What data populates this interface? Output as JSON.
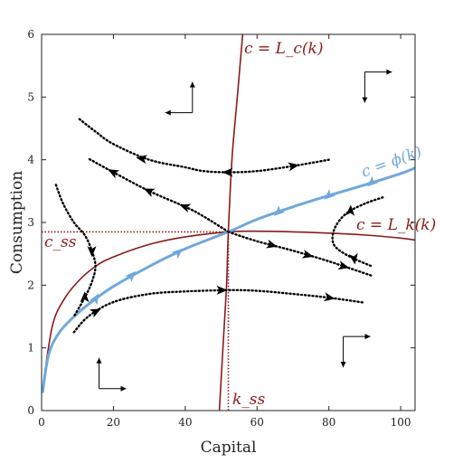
{
  "chart_data": {
    "type": "line",
    "xlabel": "Capital",
    "ylabel": "Consumption",
    "xlim": [
      0,
      104
    ],
    "ylim": [
      0,
      6
    ],
    "x_ticks": [
      "0",
      "20",
      "40",
      "60",
      "80",
      "100"
    ],
    "y_ticks": [
      "0",
      "1",
      "2",
      "3",
      "4",
      "5",
      "6"
    ],
    "grid": false,
    "steady_state": {
      "k": 52,
      "c": 2.85
    },
    "annotations": {
      "lc_label": "c = L_c(k)",
      "lk_label": "c = L_k(k)",
      "phi_label": "c = ϕ(k)",
      "css_label": "c_ss",
      "kss_label": "k_ss"
    },
    "colors": {
      "nullcline": "#8b1a1a",
      "saddle_path": "#6fa8dc",
      "trajectory": "#000000",
      "axes": "#222222"
    },
    "series": [
      {
        "id": "lc",
        "style": "nullcline",
        "x": [
          49.5,
          50.5,
          51.5,
          52.0,
          53.0,
          54.5,
          56.0
        ],
        "y": [
          0,
          1.0,
          2.0,
          2.85,
          4.0,
          5.0,
          6.0
        ]
      },
      {
        "id": "lk",
        "style": "nullcline",
        "x": [
          0.5,
          3,
          6,
          10,
          15,
          20,
          30,
          40,
          52,
          60,
          70,
          80,
          90,
          100,
          104
        ],
        "y": [
          0.45,
          1.35,
          1.75,
          2.05,
          2.3,
          2.45,
          2.65,
          2.77,
          2.85,
          2.86,
          2.85,
          2.83,
          2.8,
          2.75,
          2.72
        ]
      },
      {
        "id": "phi",
        "style": "saddle",
        "x": [
          0.3,
          2,
          5,
          10,
          15,
          20,
          30,
          40,
          52,
          60,
          70,
          80,
          90,
          100,
          104
        ],
        "y": [
          0.3,
          0.9,
          1.25,
          1.55,
          1.78,
          1.98,
          2.3,
          2.58,
          2.85,
          3.05,
          3.25,
          3.43,
          3.6,
          3.78,
          3.87
        ]
      },
      {
        "id": "t1",
        "style": "trajectory",
        "x": [
          80,
          70,
          60,
          52,
          45,
          40,
          30,
          20,
          15,
          10.5
        ],
        "y": [
          4.0,
          3.9,
          3.82,
          3.8,
          3.82,
          3.88,
          4.0,
          4.25,
          4.45,
          4.65
        ]
      },
      {
        "id": "t2",
        "style": "trajectory",
        "x": [
          52,
          45,
          40,
          30,
          20,
          13
        ],
        "y": [
          2.85,
          3.1,
          3.25,
          3.5,
          3.8,
          4.02
        ]
      },
      {
        "id": "t3",
        "style": "trajectory",
        "x": [
          9,
          13,
          20,
          30,
          40,
          52,
          60,
          70,
          80,
          90
        ],
        "y": [
          1.25,
          1.5,
          1.73,
          1.86,
          1.9,
          1.92,
          1.91,
          1.86,
          1.8,
          1.72
        ]
      },
      {
        "id": "t4",
        "style": "trajectory",
        "x": [
          52,
          60,
          70,
          80,
          92
        ],
        "y": [
          2.85,
          2.7,
          2.55,
          2.38,
          2.15
        ]
      },
      {
        "id": "t5",
        "style": "trajectory",
        "x": [
          4,
          6,
          9,
          12,
          14,
          15,
          14,
          12,
          9
        ],
        "y": [
          3.6,
          3.3,
          3.0,
          2.8,
          2.55,
          2.3,
          2.05,
          1.8,
          1.5
        ]
      },
      {
        "id": "t6",
        "style": "trajectory",
        "x": [
          95,
          90,
          85,
          82,
          81,
          82,
          86,
          92
        ],
        "y": [
          3.4,
          3.3,
          3.15,
          2.95,
          2.75,
          2.6,
          2.45,
          2.3
        ]
      }
    ],
    "arrows": [
      {
        "series": "phi",
        "x": 15,
        "y": 1.78,
        "dx": 1,
        "dy": 0.1
      },
      {
        "series": "phi",
        "x": 25,
        "y": 2.15,
        "dx": 1,
        "dy": 0.06
      },
      {
        "series": "phi",
        "x": 38,
        "y": 2.52,
        "dx": 1,
        "dy": 0.05
      },
      {
        "series": "phi",
        "x": 66,
        "y": 3.17,
        "dx": -1,
        "dy": -0.05
      },
      {
        "series": "phi",
        "x": 80,
        "y": 3.43,
        "dx": -1,
        "dy": -0.05
      },
      {
        "series": "phi",
        "x": 92,
        "y": 3.64,
        "dx": -1,
        "dy": -0.05
      },
      {
        "series": "t1",
        "x": 70,
        "y": 3.9,
        "dx": 1,
        "dy": 0.01
      },
      {
        "series": "t1",
        "x": 52,
        "y": 3.8,
        "dx": -1,
        "dy": 0
      },
      {
        "series": "t1",
        "x": 28,
        "y": 4.02,
        "dx": -1,
        "dy": 0.01
      },
      {
        "series": "t2",
        "x": 40,
        "y": 3.25,
        "dx": -1,
        "dy": 0.02
      },
      {
        "series": "t2",
        "x": 30,
        "y": 3.5,
        "dx": -1,
        "dy": 0.025
      },
      {
        "series": "t2",
        "x": 20,
        "y": 3.8,
        "dx": -1,
        "dy": 0.03
      },
      {
        "series": "t3",
        "x": 15,
        "y": 1.58,
        "dx": 1,
        "dy": 0.03
      },
      {
        "series": "t3",
        "x": 50,
        "y": 1.92,
        "dx": 1,
        "dy": 0
      },
      {
        "series": "t3",
        "x": 80,
        "y": 1.8,
        "dx": 1,
        "dy": -0.01
      },
      {
        "series": "t4",
        "x": 64,
        "y": 2.64,
        "dx": 1,
        "dy": -0.015
      },
      {
        "series": "t4",
        "x": 74,
        "y": 2.48,
        "dx": 1,
        "dy": -0.015
      },
      {
        "series": "t4",
        "x": 84,
        "y": 2.3,
        "dx": 1,
        "dy": -0.015
      },
      {
        "series": "t5",
        "x": 14,
        "y": 2.55,
        "dx": 0.3,
        "dy": -1
      },
      {
        "series": "t5",
        "x": 12,
        "y": 1.8,
        "dx": 0.3,
        "dy": 1
      },
      {
        "series": "t6",
        "x": 86,
        "y": 3.18,
        "dx": 0.5,
        "dy": 0.5
      },
      {
        "series": "t6",
        "x": 87,
        "y": 2.43,
        "dx": 1,
        "dy": -0.4
      }
    ],
    "direction_indicators": [
      {
        "x": 16,
        "y": 0.35,
        "h": "right",
        "v": "up"
      },
      {
        "x": 42,
        "y": 4.75,
        "h": "left",
        "v": "up"
      },
      {
        "x": 90,
        "y": 5.4,
        "h": "right",
        "v": "down"
      },
      {
        "x": 84,
        "y": 1.18,
        "h": "right",
        "v": "down"
      }
    ]
  }
}
